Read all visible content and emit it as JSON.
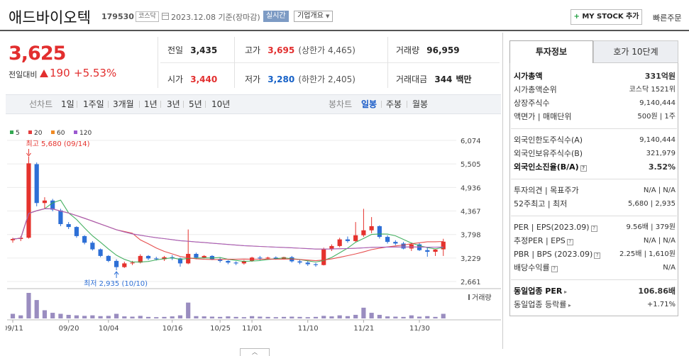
{
  "header": {
    "company": "애드바이오텍",
    "code": "179530",
    "market": "코스닥",
    "date": "2023.12.08 기준(장마감)",
    "realtime": "실시간",
    "company_info": "기업개요",
    "mystock_plus": "+",
    "mystock": "MY STOCK 추가",
    "quick_order": "빠른주문"
  },
  "price": {
    "current": "3,625",
    "change_label": "전일대비",
    "change": "190",
    "rate": "+5.53%"
  },
  "quote": {
    "prev_label": "전일",
    "prev": "3,435",
    "high_label": "고가",
    "high": "3,695",
    "upper_limit": "(상한가 4,465)",
    "volume_label": "거래량",
    "volume": "96,959",
    "open_label": "시가",
    "open": "3,440",
    "low_label": "저가",
    "low": "3,280",
    "lower_limit": "(하한가 2,405)",
    "amount_label": "거래대금",
    "amount": "344",
    "amount_unit": "백만"
  },
  "period_bar": {
    "line_label": "선차트",
    "line_periods": [
      "1일",
      "1주일",
      "3개월",
      "1년",
      "3년",
      "5년",
      "10년"
    ],
    "candle_label": "봉차트",
    "candle_periods": [
      "일봉",
      "주봉",
      "월봉"
    ],
    "active_candle": "일봉"
  },
  "chart_data": {
    "type": "candlestick",
    "legend": [
      {
        "name": "5",
        "color": "#33a852"
      },
      {
        "name": "20",
        "color": "#e33d3d"
      },
      {
        "name": "60",
        "color": "#f08a24"
      },
      {
        "name": "120",
        "color": "#9b59d0"
      }
    ],
    "y_ticks": [
      6074,
      5505,
      4936,
      4367,
      3798,
      3229,
      2661
    ],
    "y_tick_labels": [
      "6,074",
      "5,505",
      "4,936",
      "4,367",
      "3,798",
      "3,229",
      "2,661"
    ],
    "x_ticks": [
      {
        "i": 0,
        "label": "09/11"
      },
      {
        "i": 7,
        "label": "09/20"
      },
      {
        "i": 12,
        "label": "10/04"
      },
      {
        "i": 20,
        "label": "10/16"
      },
      {
        "i": 26,
        "label": "10/25"
      },
      {
        "i": 30,
        "label": "11/01"
      },
      {
        "i": 37,
        "label": "11/10"
      },
      {
        "i": 44,
        "label": "11/21"
      },
      {
        "i": 51,
        "label": "11/30"
      }
    ],
    "high_annotation": "최고 5,680 (09/14)",
    "low_annotation": "최저 2,935 (10/10)",
    "volume_label": "거래량",
    "candles": [
      [
        3660,
        3720,
        3600,
        3690
      ],
      [
        3690,
        3760,
        3640,
        3720
      ],
      [
        3720,
        5680,
        3700,
        5520
      ],
      [
        5500,
        5540,
        4480,
        4560
      ],
      [
        4560,
        4700,
        4420,
        4620
      ],
      [
        4620,
        4660,
        4360,
        4400
      ],
      [
        4380,
        4420,
        4000,
        4050
      ],
      [
        4050,
        4100,
        3930,
        3980
      ],
      [
        3980,
        4000,
        3720,
        3760
      ],
      [
        3760,
        3780,
        3560,
        3600
      ],
      [
        3600,
        3640,
        3410,
        3440
      ],
      [
        3440,
        3460,
        3250,
        3280
      ],
      [
        3280,
        3300,
        3130,
        3160
      ],
      [
        3160,
        3200,
        2935,
        3010
      ],
      [
        3010,
        3140,
        2990,
        3100
      ],
      [
        3100,
        3160,
        3060,
        3120
      ],
      [
        3120,
        3320,
        3100,
        3280
      ],
      [
        3280,
        3300,
        3180,
        3220
      ],
      [
        3220,
        3260,
        3170,
        3200
      ],
      [
        3200,
        3280,
        3160,
        3250
      ],
      [
        3250,
        3300,
        3180,
        3220
      ],
      [
        3220,
        3240,
        3020,
        3100
      ],
      [
        3100,
        3920,
        3080,
        3330
      ],
      [
        3330,
        3360,
        3200,
        3240
      ],
      [
        3240,
        3300,
        3220,
        3280
      ],
      [
        3280,
        3300,
        3180,
        3200
      ],
      [
        3200,
        3240,
        3120,
        3160
      ],
      [
        3160,
        3180,
        3080,
        3120
      ],
      [
        3120,
        3150,
        3060,
        3100
      ],
      [
        3100,
        3180,
        3070,
        3160
      ],
      [
        3160,
        3260,
        3140,
        3240
      ],
      [
        3240,
        3280,
        3180,
        3220
      ],
      [
        3220,
        3260,
        3200,
        3240
      ],
      [
        3240,
        3270,
        3190,
        3210
      ],
      [
        3210,
        3260,
        3200,
        3250
      ],
      [
        3250,
        3280,
        3120,
        3150
      ],
      [
        3150,
        3200,
        3080,
        3120
      ],
      [
        3120,
        3160,
        3040,
        3080
      ],
      [
        3080,
        3110,
        3020,
        3060
      ],
      [
        3060,
        3480,
        3050,
        3440
      ],
      [
        3440,
        3560,
        3400,
        3520
      ],
      [
        3520,
        3720,
        3490,
        3680
      ],
      [
        3680,
        3750,
        3600,
        3640
      ],
      [
        3640,
        4100,
        3620,
        3780
      ],
      [
        3780,
        4420,
        3740,
        3900
      ],
      [
        3900,
        4220,
        3830,
        4000
      ],
      [
        4000,
        4020,
        3700,
        3740
      ],
      [
        3740,
        3780,
        3580,
        3620
      ],
      [
        3620,
        3660,
        3540,
        3580
      ],
      [
        3580,
        3620,
        3440,
        3460
      ],
      [
        3460,
        3600,
        3400,
        3560
      ],
      [
        3560,
        3590,
        3400,
        3420
      ],
      [
        3420,
        3500,
        3260,
        3380
      ],
      [
        3380,
        3440,
        3280,
        3435
      ],
      [
        3440,
        3695,
        3280,
        3625
      ]
    ],
    "volumes": [
      0.18,
      0.12,
      1.0,
      0.72,
      0.32,
      0.22,
      0.18,
      0.14,
      0.12,
      0.1,
      0.12,
      0.09,
      0.1,
      0.18,
      0.08,
      0.07,
      0.1,
      0.06,
      0.05,
      0.06,
      0.08,
      0.12,
      0.62,
      0.09,
      0.08,
      0.07,
      0.06,
      0.08,
      0.06,
      0.05,
      0.09,
      0.07,
      0.06,
      0.05,
      0.06,
      0.07,
      0.06,
      0.05,
      0.06,
      0.1,
      0.08,
      0.12,
      0.09,
      0.14,
      0.42,
      0.22,
      0.14,
      0.08,
      0.07,
      0.06,
      0.12,
      0.07,
      0.09,
      0.06,
      0.18
    ]
  },
  "right_panel": {
    "tab_invest": "투자정보",
    "tab_hoga": "호가 10단계",
    "market_cap_label": "시가총액",
    "market_cap": "331억원",
    "cap_rank_label": "시가총액순위",
    "cap_rank": "코스닥 1521위",
    "listed_shares_label": "상장주식수",
    "listed_shares": "9,140,444",
    "par_label": "액면가 | 매매단위",
    "par": "500원 | 1주",
    "foreign_limit_label": "외국인한도주식수(A)",
    "foreign_limit": "9,140,444",
    "foreign_hold_label": "외국인보유주식수(B)",
    "foreign_hold": "321,979",
    "foreign_ratio_label": "외국인소진율(B/A)",
    "foreign_ratio": "3.52%",
    "opinion_label": "투자의견 | 목표주가",
    "opinion": "N/A | N/A",
    "week52_label": "52주최고 | 최저",
    "week52": "5,680 | 2,935",
    "per_label": "PER | EPS(2023.09)",
    "per": "9.56배 | 379원",
    "est_per_label": "추정PER | EPS",
    "est_per": "N/A | N/A",
    "pbr_label": "PBR | BPS (2023.09)",
    "pbr": "2.25배 | 1,610원",
    "div_label": "배당수익률",
    "div": "N/A",
    "ind_per_label": "동일업종 PER",
    "ind_per": "106.86배",
    "ind_rate_label": "동일업종 등락률",
    "ind_rate": "+1.71%"
  }
}
